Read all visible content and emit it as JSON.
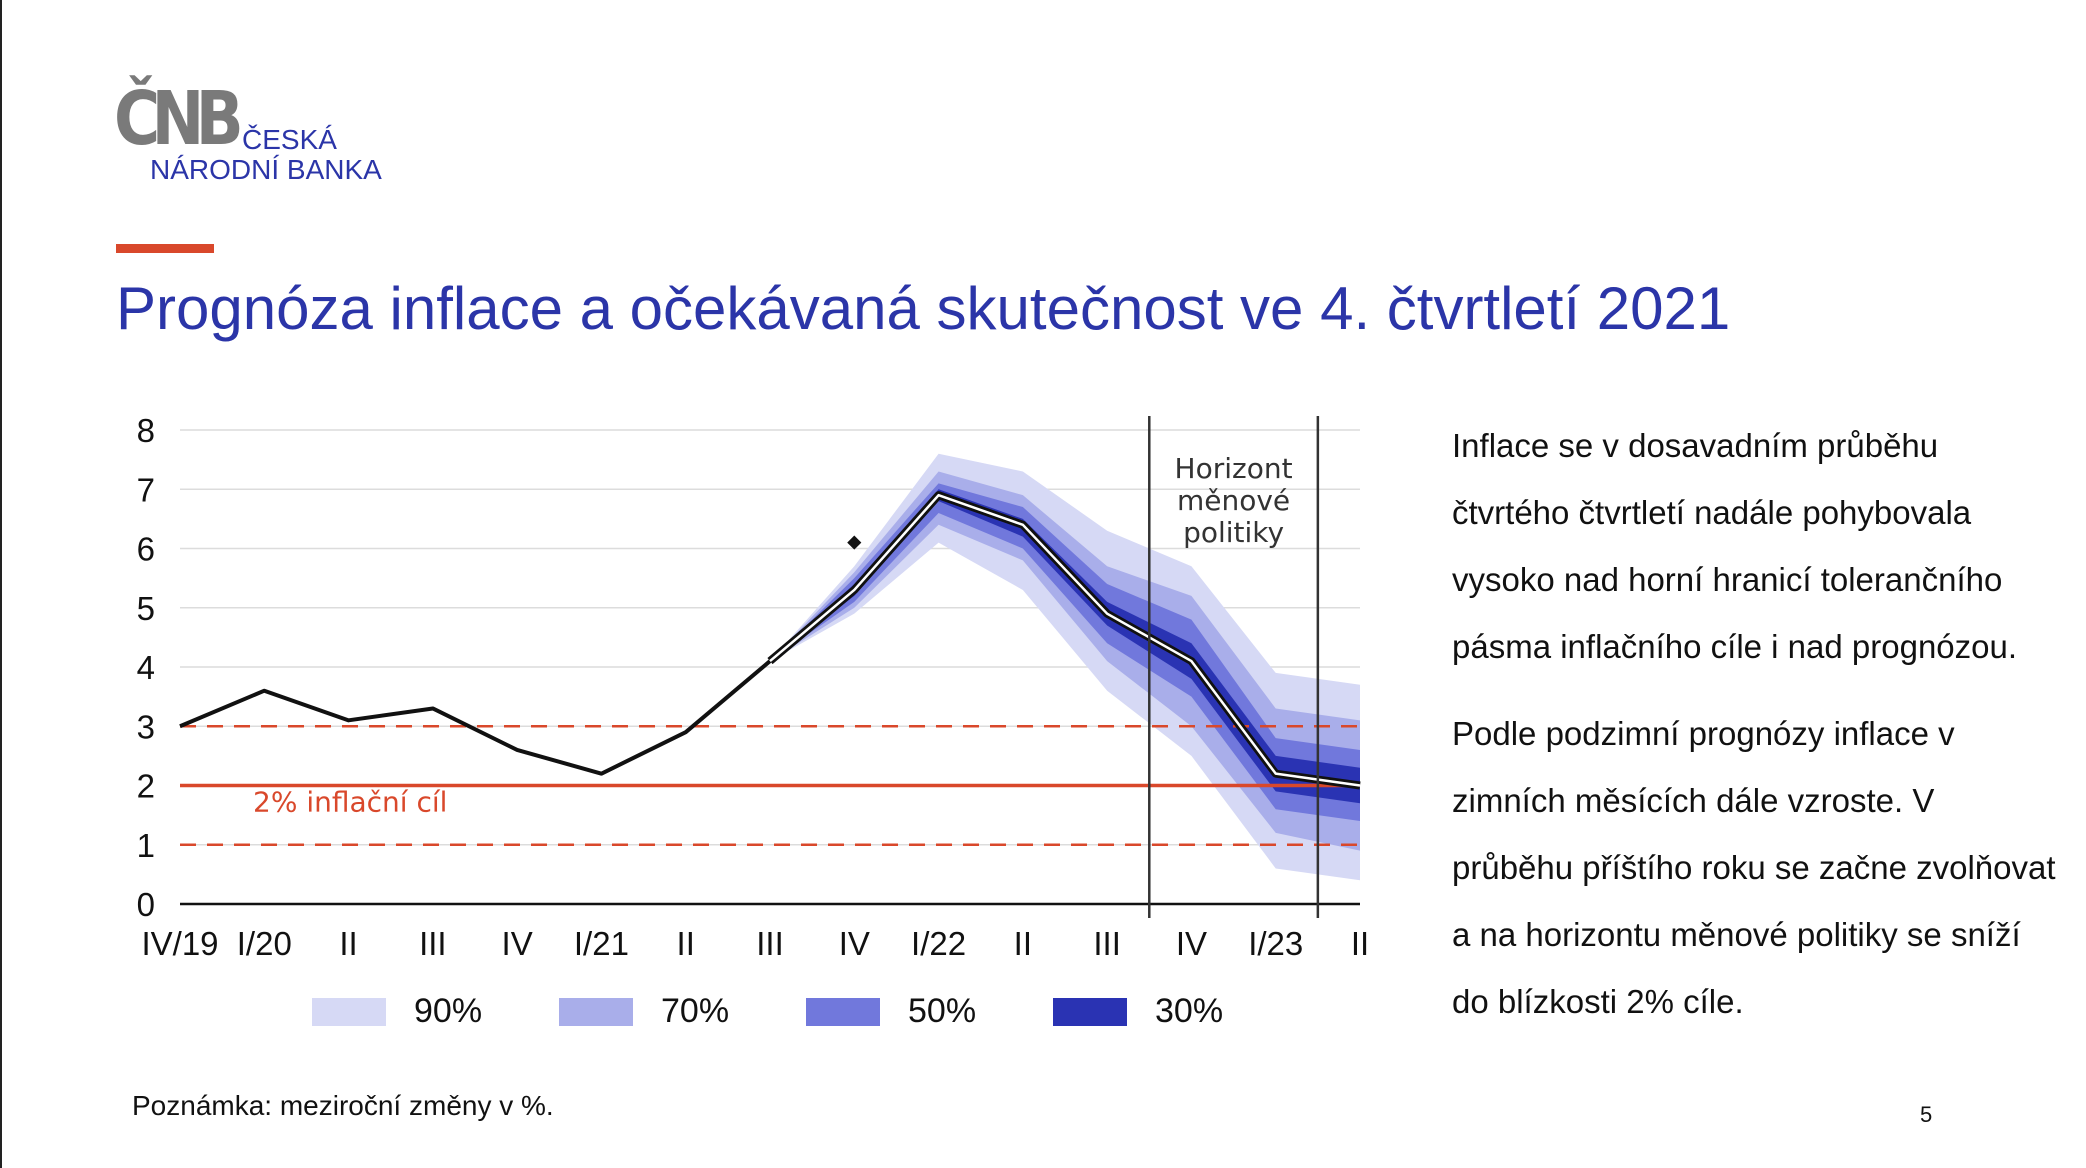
{
  "logo": {
    "mark": "ČNB",
    "name_line1": "ČESKÁ",
    "name_line2": "NÁRODNÍ BANKA"
  },
  "title": "Prognóza inflace a očekávaná skutečnost ve 4. čtvrtletí 2021",
  "side_text": {
    "paragraph1": "Inflace se v dosavadním průběhu čtvrtého čtvrtletí nadále pohybovala vysoko nad horní hranicí tolerančního pásma inflačního cíle i nad prognózou.",
    "paragraph2": "Podle podzimní prognózy inflace v zimních měsících dále vzroste. V průběhu příštího roku se začne zvolňovat a na horizontu měnové politiky se sníží do blízkosti 2% cíle."
  },
  "note": "Poznámka: meziroční změny v %.",
  "page_number": "5",
  "colors": {
    "title_blue": "#2b35a8",
    "accent_red": "#d9482b",
    "band_90": "#d6d9f5",
    "band_70": "#a9aeea",
    "band_50": "#7178dc",
    "band_30": "#2a33b3",
    "target_line": "#d9482b"
  },
  "chart_data": {
    "type": "line",
    "categories": [
      "IV/19",
      "I/20",
      "II",
      "III",
      "IV",
      "I/21",
      "II",
      "III",
      "IV",
      "I/22",
      "II",
      "III",
      "IV",
      "I/23",
      "II"
    ],
    "ylim": [
      0,
      8
    ],
    "yticks": [
      0,
      1,
      2,
      3,
      4,
      5,
      6,
      7,
      8
    ],
    "grid": true,
    "series": [
      {
        "values": [
          3.0,
          3.6,
          3.1,
          3.3,
          2.6,
          2.2,
          2.9,
          4.1,
          5.3,
          6.9,
          6.4,
          4.9,
          4.1,
          2.2,
          2.0
        ]
      }
    ],
    "expected_actual": {
      "category": "IV",
      "value": 6.1
    },
    "fan_start_index": 7,
    "fan_bands": [
      {
        "label": "90%",
        "lower": [
          4.1,
          4.9,
          6.1,
          5.3,
          3.6,
          2.5,
          0.6,
          0.4
        ],
        "upper": [
          4.1,
          5.7,
          7.6,
          7.3,
          6.3,
          5.7,
          3.9,
          3.7
        ]
      },
      {
        "label": "70%",
        "lower": [
          4.1,
          5.0,
          6.4,
          5.8,
          4.1,
          3.0,
          1.2,
          0.9
        ],
        "upper": [
          4.1,
          5.6,
          7.3,
          6.9,
          5.7,
          5.2,
          3.3,
          3.1
        ]
      },
      {
        "label": "50%",
        "lower": [
          4.1,
          5.1,
          6.6,
          6.0,
          4.4,
          3.5,
          1.6,
          1.4
        ],
        "upper": [
          4.1,
          5.5,
          7.1,
          6.7,
          5.4,
          4.8,
          2.8,
          2.6
        ]
      },
      {
        "label": "30%",
        "lower": [
          4.1,
          5.2,
          6.8,
          6.2,
          4.7,
          3.8,
          1.9,
          1.7
        ],
        "upper": [
          4.1,
          5.4,
          7.0,
          6.5,
          5.1,
          4.4,
          2.5,
          2.3
        ]
      }
    ],
    "inflation_target": {
      "value": 2,
      "label": "2% inflační cíl"
    },
    "tolerance_band": [
      1,
      3
    ],
    "policy_horizon": {
      "label_lines": [
        "Horizont",
        "měnové",
        "politiky"
      ],
      "from_category_position": 11.5,
      "to_category_position": 13.5
    },
    "legend": [
      "90%",
      "70%",
      "50%",
      "30%"
    ],
    "legend_position": "bottom"
  }
}
